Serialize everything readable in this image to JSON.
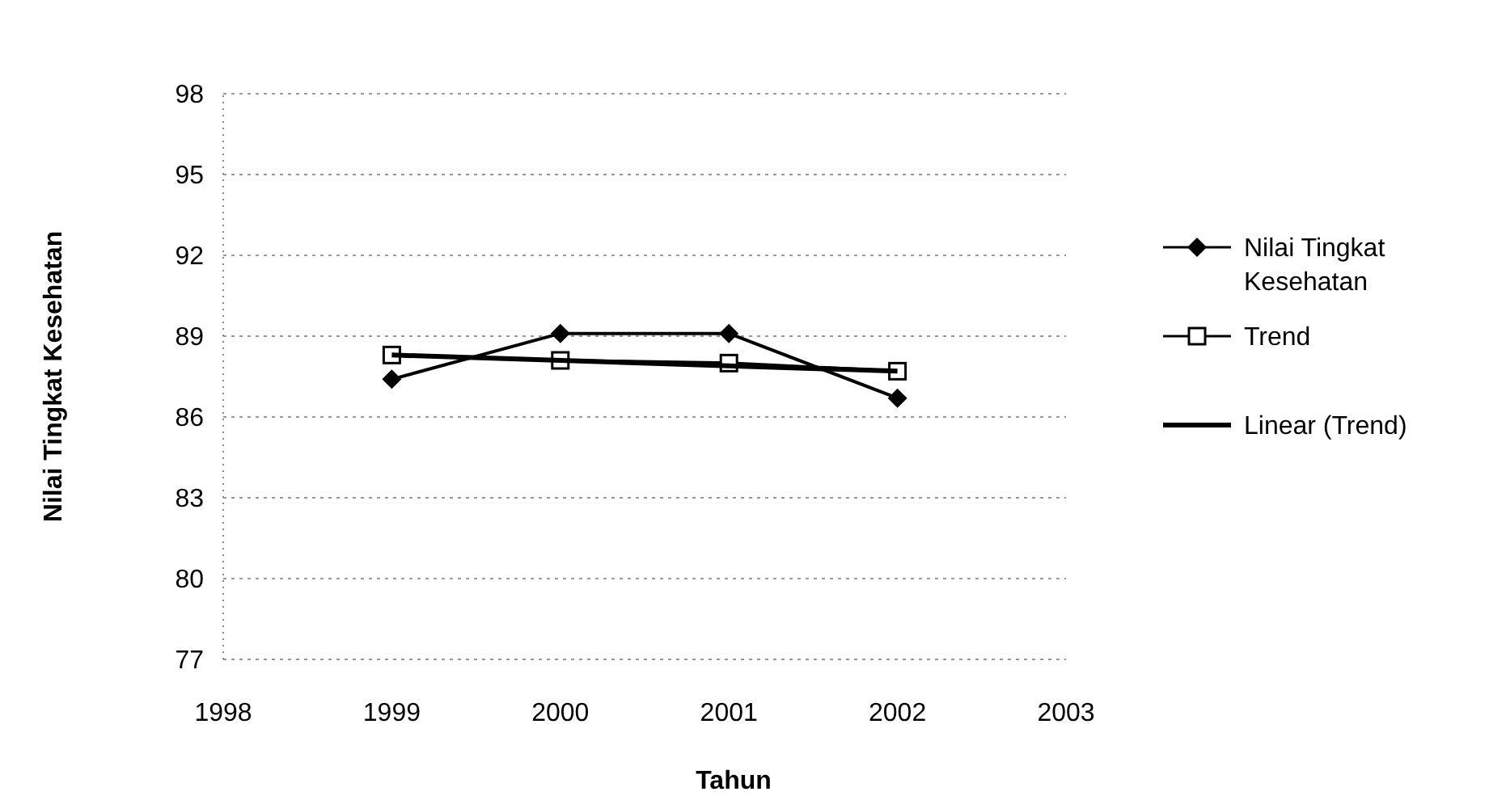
{
  "chart_data": {
    "type": "line",
    "xlabel": "Tahun",
    "ylabel": "Nilai Tingkat Kesehatan",
    "x": [
      1999,
      2000,
      2001,
      2002
    ],
    "xlim": [
      1998,
      2003
    ],
    "xticks": [
      1998,
      1999,
      2000,
      2001,
      2002,
      2003
    ],
    "ylim": [
      77,
      98
    ],
    "yticks": [
      77,
      80,
      83,
      86,
      89,
      92,
      95,
      98
    ],
    "grid": "y",
    "legend": "right",
    "series": [
      {
        "name": "Nilai Tingkat Kesehatan",
        "color": "#000000",
        "marker": "diamond",
        "values": [
          87.4,
          89.1,
          89.1,
          86.7
        ]
      },
      {
        "name": "Trend",
        "color": "#000000",
        "marker": "square",
        "values": [
          88.3,
          88.1,
          88.0,
          87.7
        ]
      },
      {
        "name": "Linear (Trend)",
        "color": "#000000",
        "marker": "none",
        "x": [
          1999,
          2002
        ],
        "values": [
          88.3,
          87.7
        ]
      }
    ]
  }
}
